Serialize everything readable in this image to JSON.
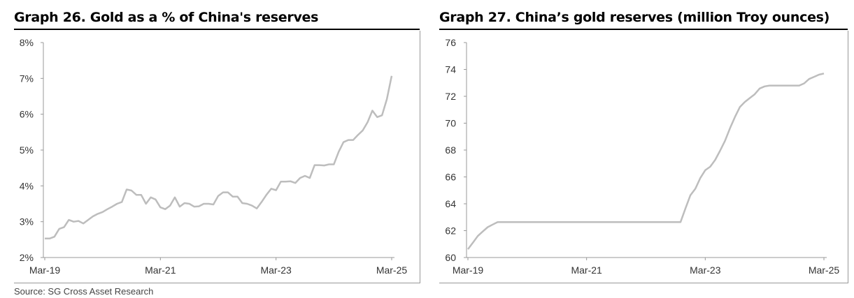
{
  "chart_data": [
    {
      "type": "line",
      "title": "Graph 26. Gold as a % of China's reserves",
      "ylim": [
        2,
        8
      ],
      "yticks": [
        "2%",
        "3%",
        "4%",
        "5%",
        "6%",
        "7%",
        "8%"
      ],
      "ytick_values": [
        2,
        3,
        4,
        5,
        6,
        7,
        8
      ],
      "xticks": [
        "Mar-19",
        "Mar-21",
        "Mar-23",
        "Mar-25"
      ],
      "xlim": [
        "2019-03",
        "2025-03"
      ],
      "grid": false,
      "line_color": "#bdbdbd",
      "series": [
        {
          "x": [
            "2019-03",
            "2019-04",
            "2019-05",
            "2019-06",
            "2019-07",
            "2019-08",
            "2019-09",
            "2019-10",
            "2019-11",
            "2019-12",
            "2020-01",
            "2020-02",
            "2020-03",
            "2020-04",
            "2020-05",
            "2020-06",
            "2020-07",
            "2020-08",
            "2020-09",
            "2020-10",
            "2020-11",
            "2020-12",
            "2021-01",
            "2021-02",
            "2021-03",
            "2021-04",
            "2021-05",
            "2021-06",
            "2021-07",
            "2021-08",
            "2021-09",
            "2021-10",
            "2021-11",
            "2021-12",
            "2022-01",
            "2022-02",
            "2022-03",
            "2022-04",
            "2022-05",
            "2022-06",
            "2022-07",
            "2022-08",
            "2022-09",
            "2022-10",
            "2022-11",
            "2022-12",
            "2023-01",
            "2023-02",
            "2023-03",
            "2023-04",
            "2023-05",
            "2023-06",
            "2023-07",
            "2023-08",
            "2023-09",
            "2023-10",
            "2023-11",
            "2023-12",
            "2024-01",
            "2024-02",
            "2024-03",
            "2024-04",
            "2024-05",
            "2024-06",
            "2024-07",
            "2024-08",
            "2024-09",
            "2024-10",
            "2024-11",
            "2024-12",
            "2025-01",
            "2025-02",
            "2025-03"
          ],
          "values": [
            2.53,
            2.53,
            2.58,
            2.8,
            2.85,
            3.05,
            3.0,
            3.02,
            2.95,
            3.05,
            3.15,
            3.22,
            3.27,
            3.35,
            3.42,
            3.5,
            3.55,
            3.9,
            3.87,
            3.75,
            3.75,
            3.5,
            3.68,
            3.62,
            3.4,
            3.35,
            3.45,
            3.68,
            3.42,
            3.52,
            3.5,
            3.42,
            3.43,
            3.5,
            3.5,
            3.48,
            3.72,
            3.82,
            3.82,
            3.7,
            3.7,
            3.52,
            3.5,
            3.45,
            3.37,
            3.55,
            3.75,
            3.92,
            3.88,
            4.12,
            4.12,
            4.13,
            4.08,
            4.22,
            4.28,
            4.22,
            4.58,
            4.58,
            4.57,
            4.6,
            4.6,
            4.95,
            5.22,
            5.28,
            5.28,
            5.42,
            5.55,
            5.78,
            6.1,
            5.92,
            5.97,
            6.42,
            7.07
          ]
        }
      ]
    },
    {
      "type": "line",
      "title": "Graph 27. China’s gold reserves (million Troy ounces)",
      "ylim": [
        60,
        76
      ],
      "yticks": [
        "60",
        "62",
        "64",
        "66",
        "68",
        "70",
        "72",
        "74",
        "76"
      ],
      "ytick_values": [
        60,
        62,
        64,
        66,
        68,
        70,
        72,
        74,
        76
      ],
      "xticks": [
        "Mar-19",
        "Mar-21",
        "Mar-23",
        "Mar-25"
      ],
      "xlim": [
        "2019-03",
        "2025-03"
      ],
      "grid": false,
      "line_color": "#bdbdbd",
      "series": [
        {
          "x": [
            "2019-03",
            "2019-04",
            "2019-05",
            "2019-06",
            "2019-07",
            "2019-08",
            "2019-09",
            "2019-10",
            "2019-11",
            "2022-10",
            "2022-11",
            "2022-12",
            "2023-01",
            "2023-02",
            "2023-03",
            "2023-04",
            "2023-05",
            "2023-06",
            "2023-07",
            "2023-08",
            "2023-09",
            "2023-10",
            "2023-11",
            "2023-12",
            "2024-01",
            "2024-02",
            "2024-03",
            "2024-04",
            "2024-05",
            "2024-06",
            "2024-07",
            "2024-08",
            "2024-09",
            "2024-10",
            "2024-11",
            "2024-12",
            "2025-01",
            "2025-02",
            "2025-03"
          ],
          "values": [
            60.62,
            61.1,
            61.6,
            61.94,
            62.26,
            62.45,
            62.64,
            62.64,
            62.64,
            62.64,
            63.67,
            64.64,
            65.12,
            65.92,
            66.5,
            66.76,
            67.27,
            67.95,
            68.69,
            69.62,
            70.46,
            71.2,
            71.58,
            71.87,
            72.15,
            72.58,
            72.74,
            72.8,
            72.8,
            72.8,
            72.8,
            72.8,
            72.8,
            72.8,
            72.96,
            73.29,
            73.45,
            73.61,
            73.7
          ]
        }
      ]
    }
  ],
  "source": "Source: SG Cross Asset Research"
}
